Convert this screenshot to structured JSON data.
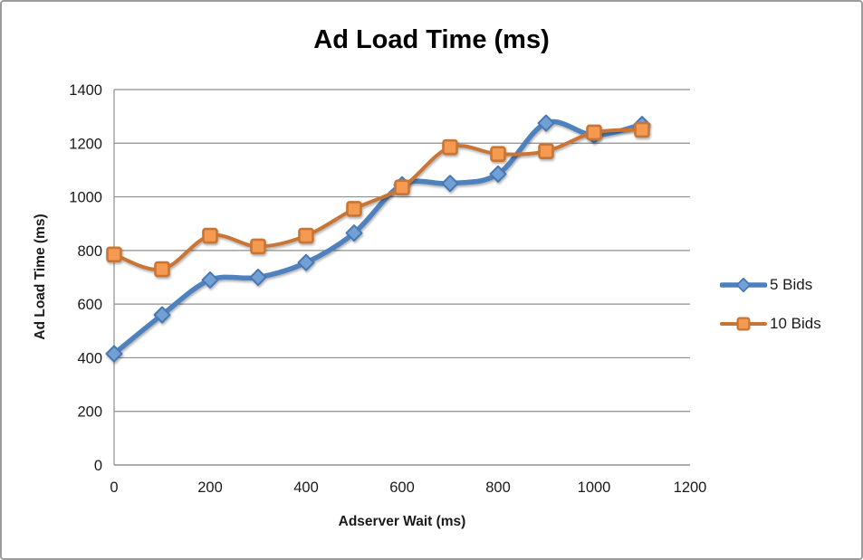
{
  "chart_data": {
    "type": "line",
    "title": "Ad Load Time (ms)",
    "xlabel": "Adserver Wait (ms)",
    "ylabel": "Ad Load Time (ms)",
    "x": [
      0,
      100,
      200,
      300,
      400,
      500,
      600,
      700,
      800,
      900,
      1000,
      1100
    ],
    "series": [
      {
        "name": "5 Bids",
        "marker": "diamond",
        "line_color": "#4f81bd",
        "marker_fill": "#71a0d7",
        "marker_stroke": "#4878b0",
        "line_width": 5.5,
        "values": [
          415,
          560,
          690,
          700,
          755,
          865,
          1045,
          1050,
          1085,
          1275,
          1230,
          1270
        ]
      },
      {
        "name": "10 Bids",
        "marker": "square",
        "line_color": "#c87434",
        "marker_fill": "#f59b51",
        "marker_stroke": "#c87434",
        "line_width": 4,
        "values": [
          785,
          730,
          855,
          815,
          855,
          955,
          1035,
          1185,
          1160,
          1170,
          1240,
          1250
        ]
      }
    ],
    "xlim": [
      0,
      1200
    ],
    "ylim": [
      0,
      1400
    ],
    "x_ticks": [
      0,
      200,
      400,
      600,
      800,
      1000,
      1200
    ],
    "y_ticks": [
      0,
      200,
      400,
      600,
      800,
      1000,
      1200,
      1400
    ],
    "grid": "horizontal",
    "smooth_lines": true,
    "legend_position": "right",
    "gridline_color": "#8e8e8e",
    "axis_color": "#8e8e8e",
    "tick_label_color": "#1a1a1a",
    "background_color": "#ffffff"
  }
}
